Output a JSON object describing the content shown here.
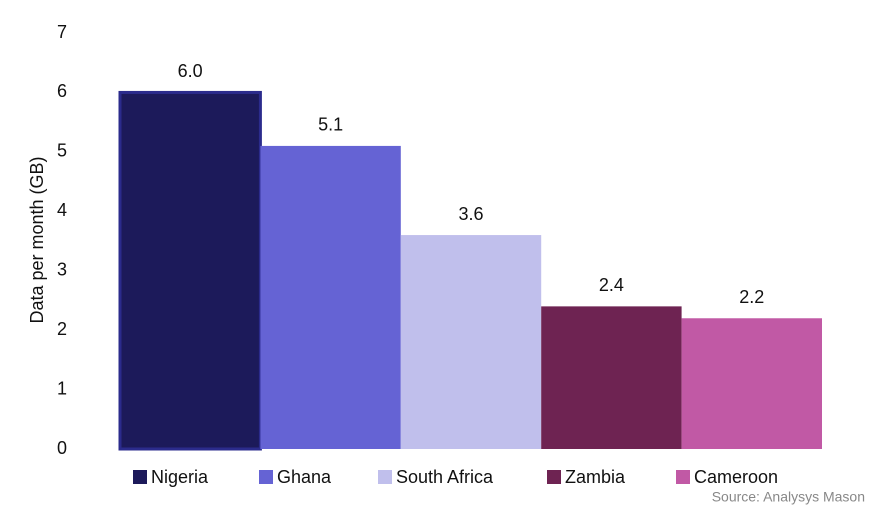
{
  "chart_data": {
    "type": "bar",
    "y_label": "Data per month (GB)",
    "series": [
      {
        "name": "Nigeria",
        "color": "#1c1a5a",
        "values": [
          6.0
        ],
        "value_labels": [
          "6.0"
        ]
      },
      {
        "name": "Ghana",
        "color": "#6563d4",
        "values": [
          5.1
        ],
        "value_labels": [
          "5.1"
        ]
      },
      {
        "name": "South Africa",
        "color": "#c0bfec",
        "values": [
          3.6
        ],
        "value_labels": [
          "3.6"
        ]
      },
      {
        "name": "Zambia",
        "color": "#6e2352",
        "values": [
          2.4
        ],
        "value_labels": [
          "2.4"
        ]
      },
      {
        "name": "Cameroon",
        "color": "#c159a5",
        "values": [
          2.2
        ],
        "value_labels": [
          "2.2"
        ]
      }
    ],
    "ylim": [
      0,
      7
    ],
    "yticks": [
      0,
      1,
      2,
      3,
      4,
      5,
      6,
      7
    ],
    "grid": false,
    "source": "Source: Analysys Mason"
  }
}
